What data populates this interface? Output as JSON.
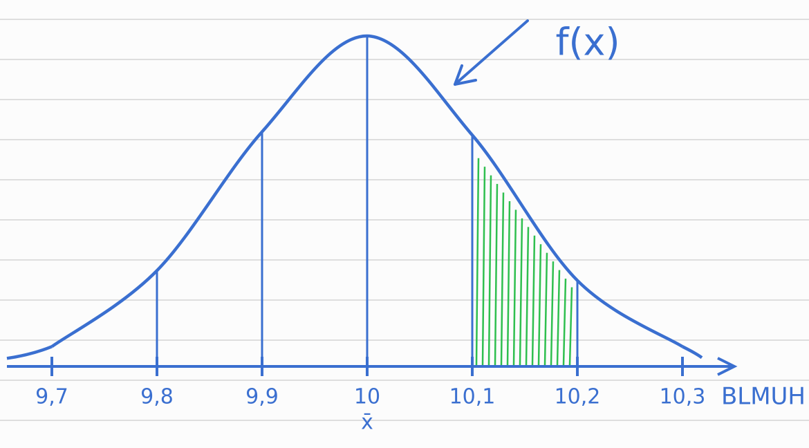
{
  "chart_data": {
    "type": "line",
    "x": [
      9.7,
      9.8,
      9.9,
      10,
      10.1,
      10.2,
      10.3
    ],
    "values": [
      0.06,
      0.29,
      0.71,
      1,
      0.7,
      0.26,
      0.06
    ],
    "color": "#3a6fd0",
    "ylim": [
      0,
      1
    ],
    "xlim": [
      9.7,
      10.3
    ],
    "xticks": [
      {
        "value": 9.7,
        "label": "9,7"
      },
      {
        "value": 9.8,
        "label": "9,8"
      },
      {
        "value": 9.9,
        "label": "9,9"
      },
      10,
      {
        "value": 10.1,
        "label": "10,1"
      },
      {
        "value": 10.2,
        "label": "10,2"
      },
      {
        "value": 10.3,
        "label": "10,3"
      }
    ],
    "xlabel": "BLMUH",
    "mean_label": "x̄",
    "curve_label": "f(x)",
    "shaded_range": [
      10.1,
      10.2
    ],
    "shade_color": "#2fbf4f"
  }
}
